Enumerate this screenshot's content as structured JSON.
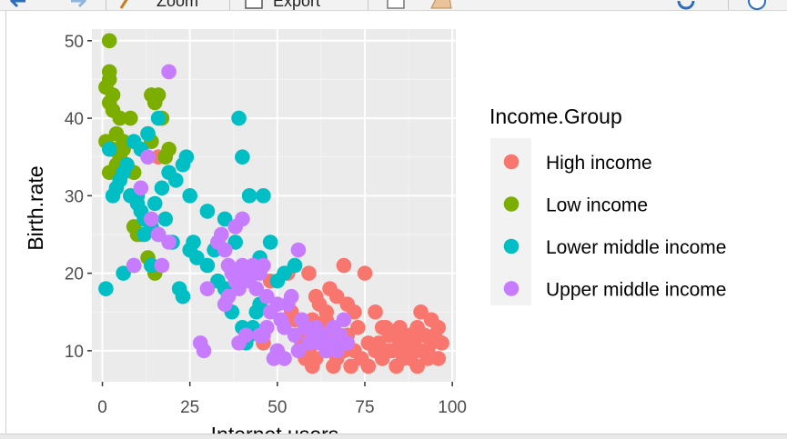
{
  "toolbar": {
    "zoom_label": "Zoom",
    "export_label": "Export",
    "icons": [
      "back-arrow-icon",
      "forward-arrow-icon",
      "zoom-icon",
      "export-icon",
      "new-window-icon",
      "broom-icon",
      "refresh-icon"
    ]
  },
  "colors": {
    "panel_bg": "#ebebeb",
    "grid_major": "#ffffff",
    "grid_minor": "#f4f4f4",
    "High income": "#F8766D",
    "Low income": "#7CAE00",
    "Lower middle income": "#00BFC4",
    "Upper middle income": "#C77CFF"
  },
  "chart_data": {
    "type": "scatter",
    "xlabel": "Internet users",
    "ylabel": "Birth.rate",
    "xlim": [
      -3,
      101
    ],
    "ylim": [
      6,
      51.5
    ],
    "xticks": [
      0,
      25,
      50,
      75,
      100
    ],
    "yticks": [
      10,
      20,
      30,
      40,
      50
    ],
    "grid": true,
    "legend": {
      "title": "Income.Group",
      "position": "right"
    },
    "series": [
      {
        "name": "High income",
        "points": [
          [
            16,
            35
          ],
          [
            48,
            19
          ],
          [
            53,
            20
          ],
          [
            59,
            20
          ],
          [
            62,
            16
          ],
          [
            64,
            14
          ],
          [
            65,
            18
          ],
          [
            67,
            17
          ],
          [
            69,
            21
          ],
          [
            72,
            15
          ],
          [
            75,
            20
          ],
          [
            78,
            15
          ],
          [
            80,
            13
          ],
          [
            82,
            12
          ],
          [
            83,
            10
          ],
          [
            84,
            12
          ],
          [
            85,
            13
          ],
          [
            86,
            11
          ],
          [
            87,
            10
          ],
          [
            88,
            12
          ],
          [
            88,
            9
          ],
          [
            89,
            11
          ],
          [
            90,
            13
          ],
          [
            91,
            10
          ],
          [
            91,
            15
          ],
          [
            92,
            12
          ],
          [
            93,
            10
          ],
          [
            94,
            11
          ],
          [
            95,
            12
          ],
          [
            96,
            13
          ],
          [
            97,
            11
          ],
          [
            96,
            9
          ],
          [
            93,
            9
          ],
          [
            90,
            8
          ],
          [
            86,
            9
          ],
          [
            84,
            8
          ],
          [
            82,
            10
          ],
          [
            80,
            9
          ],
          [
            78,
            10
          ],
          [
            76,
            11
          ],
          [
            74,
            9
          ],
          [
            72,
            10
          ],
          [
            71,
            8
          ],
          [
            70,
            12
          ],
          [
            69,
            10
          ],
          [
            68,
            11
          ],
          [
            67,
            9
          ],
          [
            66,
            8
          ],
          [
            65,
            12
          ],
          [
            64,
            10
          ],
          [
            63,
            11
          ],
          [
            62,
            13
          ],
          [
            61,
            9
          ],
          [
            60,
            8
          ],
          [
            59,
            10
          ],
          [
            58,
            9
          ],
          [
            57,
            11
          ],
          [
            56,
            12
          ],
          [
            55,
            14
          ],
          [
            54,
            15
          ],
          [
            60,
            14
          ],
          [
            63,
            12
          ],
          [
            66,
            13
          ],
          [
            70,
            16
          ],
          [
            73,
            13
          ],
          [
            76,
            8
          ],
          [
            79,
            11
          ],
          [
            81,
            13
          ],
          [
            85,
            11
          ],
          [
            89,
            10
          ],
          [
            92,
            12
          ],
          [
            94,
            14
          ],
          [
            46,
            11
          ],
          [
            61,
            17
          ],
          [
            64,
            15
          ]
        ]
      },
      {
        "name": "Low income",
        "points": [
          [
            2,
            50
          ],
          [
            2,
            46
          ],
          [
            2,
            45
          ],
          [
            1,
            44
          ],
          [
            3,
            43
          ],
          [
            2,
            42
          ],
          [
            3,
            41
          ],
          [
            5,
            40
          ],
          [
            8,
            40
          ],
          [
            4,
            38
          ],
          [
            6,
            37
          ],
          [
            1,
            37
          ],
          [
            3,
            36
          ],
          [
            5,
            35
          ],
          [
            7,
            34
          ],
          [
            2,
            33
          ],
          [
            9,
            33
          ],
          [
            14,
            43
          ],
          [
            15,
            42
          ],
          [
            16,
            43
          ],
          [
            17,
            40
          ],
          [
            13,
            38
          ],
          [
            14,
            37
          ],
          [
            19,
            36
          ],
          [
            18,
            35
          ],
          [
            10,
            25
          ],
          [
            11,
            25
          ],
          [
            13,
            22
          ],
          [
            14,
            21
          ],
          [
            15,
            20
          ],
          [
            9,
            26
          ],
          [
            12,
            27
          ],
          [
            6,
            36
          ],
          [
            4,
            34
          ]
        ]
      },
      {
        "name": "Lower middle income",
        "points": [
          [
            1,
            18
          ],
          [
            6,
            20
          ],
          [
            9,
            21
          ],
          [
            14,
            21
          ],
          [
            15,
            29
          ],
          [
            17,
            31
          ],
          [
            19,
            33
          ],
          [
            21,
            32
          ],
          [
            23,
            34
          ],
          [
            24,
            35
          ],
          [
            25,
            30
          ],
          [
            30,
            28
          ],
          [
            32,
            23
          ],
          [
            33,
            24
          ],
          [
            35,
            27
          ],
          [
            38,
            24
          ],
          [
            39,
            40
          ],
          [
            40,
            35
          ],
          [
            42,
            30
          ],
          [
            45,
            22
          ],
          [
            46,
            30
          ],
          [
            48,
            24
          ],
          [
            50,
            19
          ],
          [
            52,
            20
          ],
          [
            55,
            21
          ],
          [
            16,
            40
          ],
          [
            13,
            38
          ],
          [
            11,
            36
          ],
          [
            9,
            37
          ],
          [
            7,
            34
          ],
          [
            6,
            33
          ],
          [
            5,
            32
          ],
          [
            3,
            30
          ],
          [
            2,
            36
          ],
          [
            4,
            31
          ],
          [
            10,
            30
          ],
          [
            12,
            27
          ],
          [
            11,
            28
          ],
          [
            14,
            26
          ],
          [
            16,
            25
          ],
          [
            18,
            27
          ],
          [
            20,
            24
          ],
          [
            22,
            18
          ],
          [
            23,
            17
          ],
          [
            25,
            23
          ],
          [
            27,
            22
          ],
          [
            41,
            11
          ],
          [
            43,
            13
          ],
          [
            44,
            15
          ],
          [
            45,
            16
          ],
          [
            42,
            12
          ],
          [
            40,
            13
          ],
          [
            37,
            15
          ],
          [
            35,
            18
          ],
          [
            33,
            19
          ],
          [
            30,
            21
          ],
          [
            26,
            24
          ],
          [
            8,
            30
          ],
          [
            10,
            29
          ],
          [
            12,
            25
          ]
        ]
      },
      {
        "name": "Upper middle income",
        "points": [
          [
            19,
            46
          ],
          [
            13,
            35
          ],
          [
            11,
            31
          ],
          [
            14,
            27
          ],
          [
            16,
            25
          ],
          [
            19,
            24
          ],
          [
            17,
            21
          ],
          [
            9,
            21
          ],
          [
            30,
            18
          ],
          [
            33,
            24
          ],
          [
            34,
            25
          ],
          [
            35,
            23
          ],
          [
            36,
            21
          ],
          [
            37,
            20
          ],
          [
            38,
            19
          ],
          [
            39,
            18
          ],
          [
            40,
            21
          ],
          [
            41,
            20
          ],
          [
            42,
            19
          ],
          [
            43,
            21
          ],
          [
            44,
            18
          ],
          [
            45,
            20
          ],
          [
            46,
            21
          ],
          [
            47,
            17
          ],
          [
            48,
            15
          ],
          [
            50,
            16
          ],
          [
            51,
            14
          ],
          [
            52,
            13
          ],
          [
            53,
            16
          ],
          [
            54,
            17
          ],
          [
            55,
            12
          ],
          [
            56,
            10
          ],
          [
            57,
            14
          ],
          [
            58,
            13
          ],
          [
            60,
            12
          ],
          [
            62,
            11
          ],
          [
            64,
            10
          ],
          [
            66,
            13
          ],
          [
            68,
            12
          ],
          [
            69,
            14
          ],
          [
            70,
            11
          ],
          [
            40,
            27
          ],
          [
            38,
            26
          ],
          [
            46,
            12
          ],
          [
            47,
            13
          ],
          [
            45,
            12
          ],
          [
            49,
            9
          ],
          [
            50,
            10
          ],
          [
            52,
            9
          ],
          [
            28,
            11
          ],
          [
            29,
            10
          ],
          [
            39,
            11
          ],
          [
            41,
            12
          ],
          [
            35,
            16
          ],
          [
            36,
            17
          ],
          [
            59,
            11
          ],
          [
            61,
            13
          ],
          [
            63,
            12
          ],
          [
            65,
            11
          ],
          [
            67,
            10
          ],
          [
            56,
            23
          ]
        ]
      }
    ]
  }
}
